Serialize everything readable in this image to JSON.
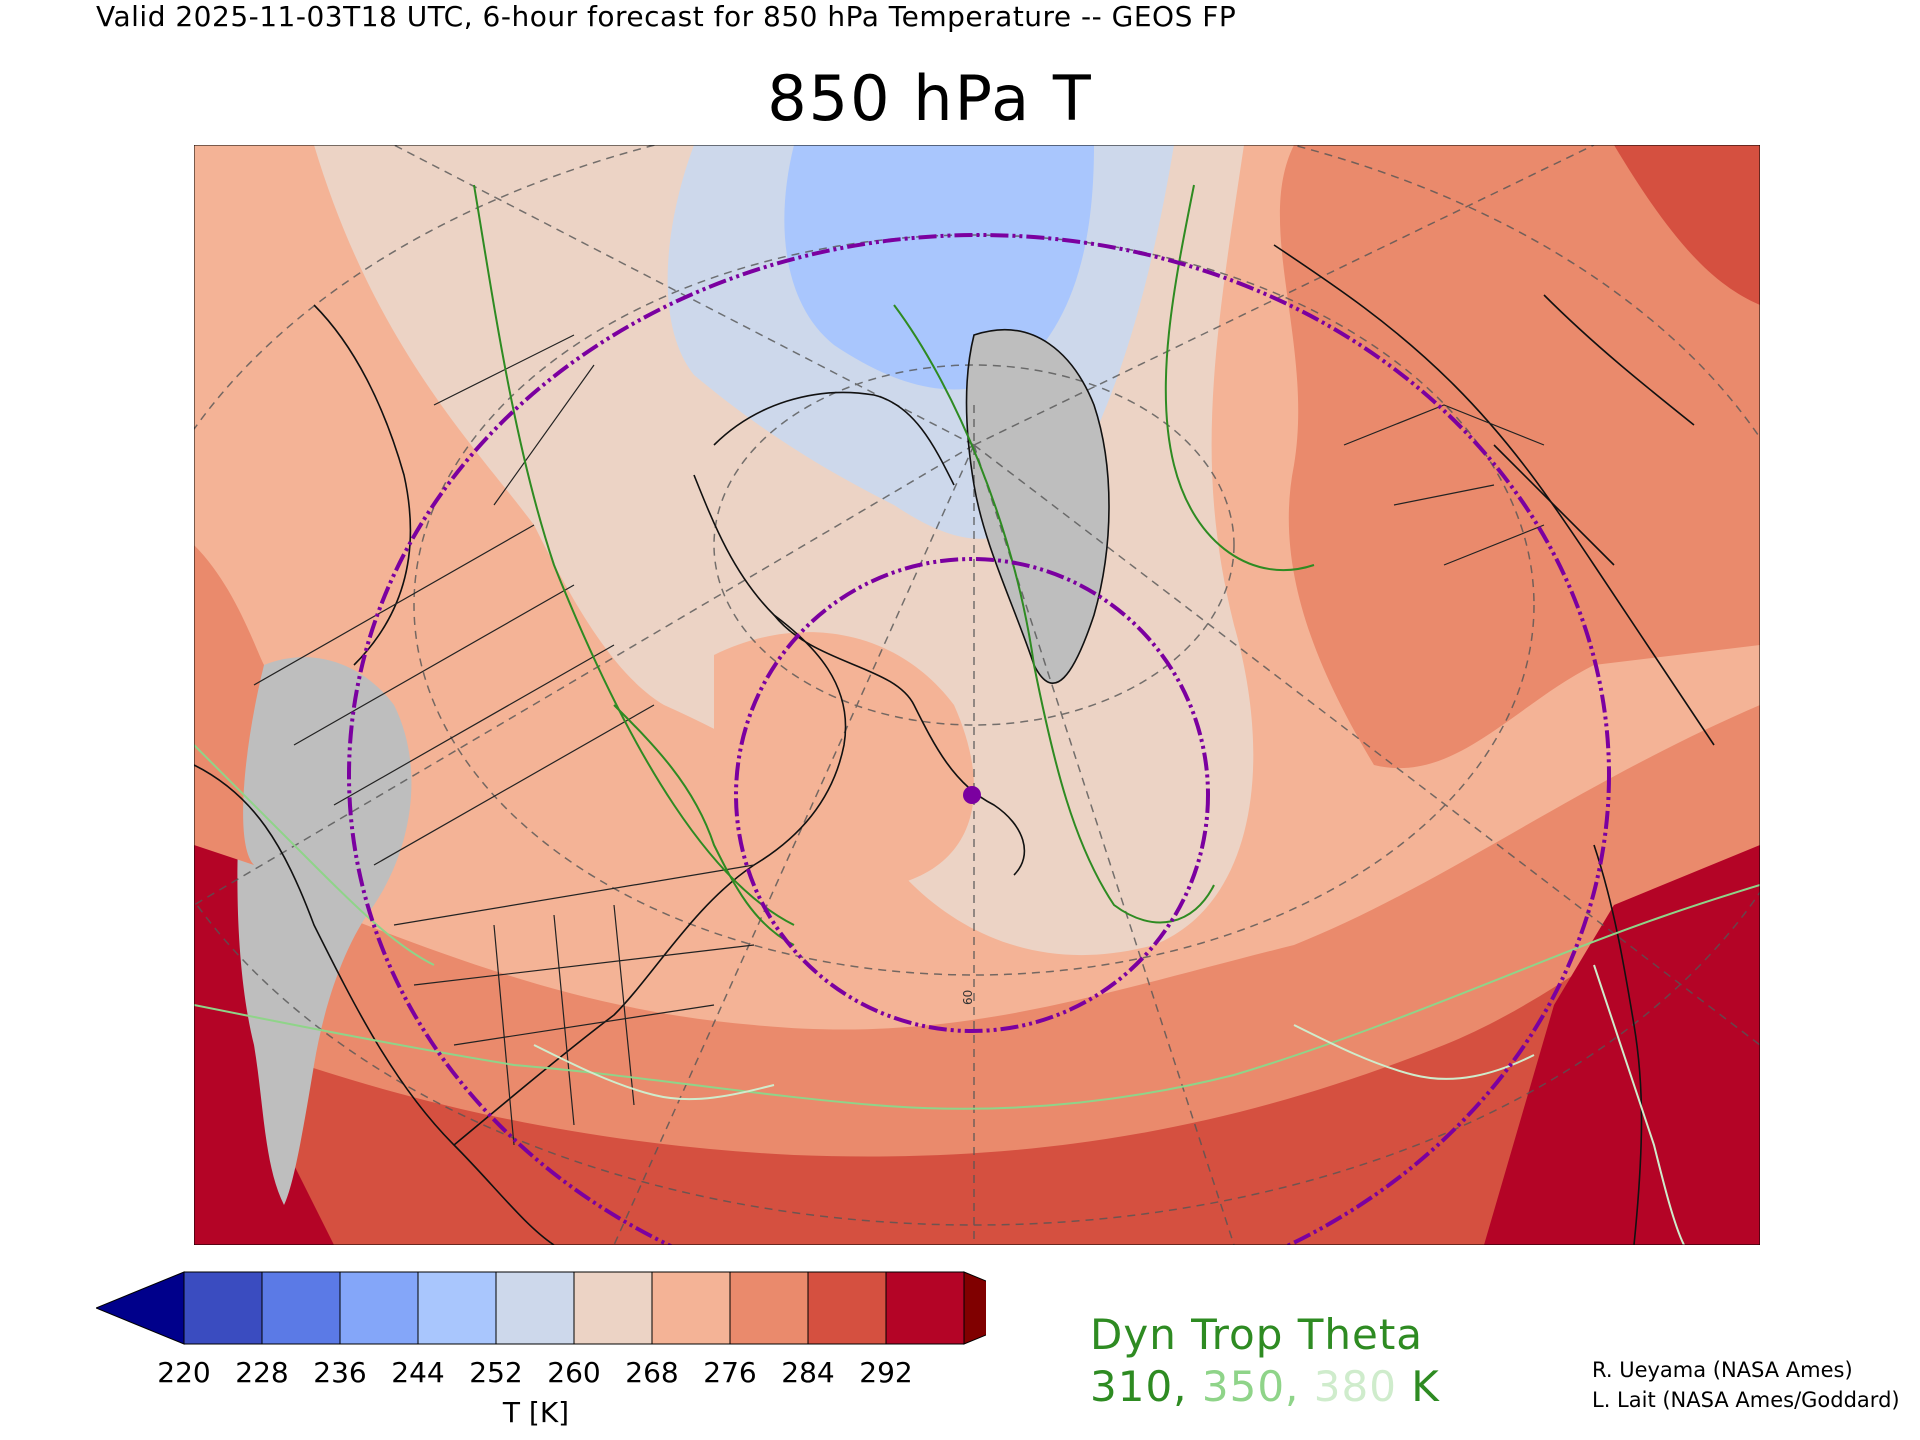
{
  "header": "Valid 2025-11-03T18 UTC, 6-hour forecast for 850 hPa Temperature -- GEOS FP",
  "title": "850 hPa T",
  "colorbar": {
    "labels": [
      "220",
      "228",
      "236",
      "244",
      "252",
      "260",
      "268",
      "276",
      "284",
      "292"
    ],
    "unit": "T [K]",
    "colors": [
      "#00008b",
      "#3a4cc0",
      "#5b7ae6",
      "#84a6f9",
      "#a9c6fd",
      "#cdd8eb",
      "#ecd3c5",
      "#f4b396",
      "#ea8a6c",
      "#d55040",
      "#b40426",
      "#800000"
    ]
  },
  "map": {
    "ocean_colors": [
      "#f4b396",
      "#ea8a6c",
      "#d55040"
    ],
    "missing_color": "#bebebe",
    "tropopause_colors": [
      "#2e8b22",
      "#8fd489",
      "#cfeccc"
    ],
    "circle_color": "#7b00a0",
    "point_label": "60"
  },
  "legend": {
    "title": "Dyn Trop Theta",
    "value1": "310,",
    "value2": "350,",
    "value3": "380",
    "unit": "K"
  },
  "credits": [
    "R. Ueyama (NASA Ames)",
    "L. Lait (NASA Ames/Goddard)"
  ]
}
